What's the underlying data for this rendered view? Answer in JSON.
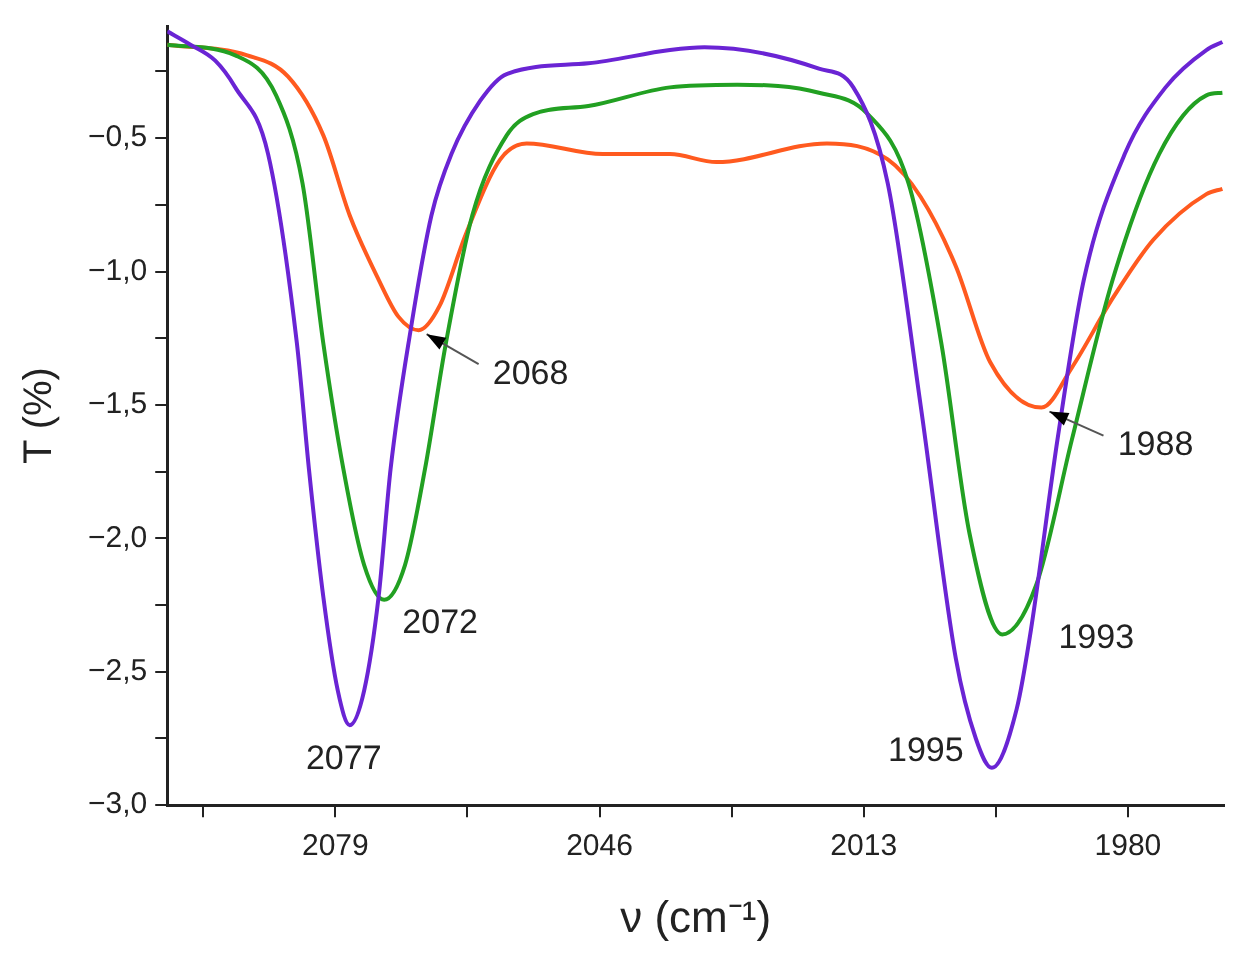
{
  "chart_data": {
    "type": "line",
    "xlabel": "ν (cm⁻¹)",
    "ylabel": "T (%)",
    "xlim": [
      2100,
      1968
    ],
    "ylim": [
      -3.0,
      -0.08
    ],
    "xticks": [
      {
        "value": 2095.5,
        "label": null
      },
      2079,
      {
        "value": 2062.5,
        "label": null
      },
      2046,
      {
        "value": 2029.5,
        "label": null
      },
      2013,
      {
        "value": 1996.5,
        "label": null
      },
      1980
    ],
    "yticks": [
      {
        "value": -3.0,
        "label": "−3,0"
      },
      {
        "value": -2.75,
        "label": null
      },
      {
        "value": -2.5,
        "label": "−2,5"
      },
      {
        "value": -2.25,
        "label": null
      },
      {
        "value": -2.0,
        "label": "−2,0"
      },
      {
        "value": -1.75,
        "label": null
      },
      {
        "value": -1.5,
        "label": "−1,5"
      },
      {
        "value": -1.25,
        "label": null
      },
      {
        "value": -1.0,
        "label": "−1,0"
      },
      {
        "value": -0.75,
        "label": null
      },
      {
        "value": -0.5,
        "label": "−0,5"
      },
      {
        "value": -0.25,
        "label": null
      }
    ],
    "marker": "none",
    "line_style": "solid",
    "legend": false,
    "series": [
      {
        "color": "#6a24d4",
        "x": [
          2100,
          2097.1,
          2094.0,
          2091.5,
          2087.4,
          2083.8,
          2082.3,
          2080.5,
          2078.7,
          2077.2,
          2075.4,
          2073.6,
          2072.1,
          2069.6,
          2067.0,
          2064.5,
          2060.9,
          2057.6,
          2047.4,
          2037.2,
          2032.9,
          2018.6,
          2014.3,
          2010.0,
          2005.9,
          2001.5,
          1999.0,
          1997.0,
          1993.9,
          1992.1,
          1988.8,
          1985.5,
          1980.4,
          1975.3,
          1970.2,
          1968.2
        ],
        "values": [
          -0.1,
          -0.15,
          -0.21,
          -0.31,
          -0.56,
          -1.27,
          -1.74,
          -2.22,
          -2.57,
          -2.7,
          -2.57,
          -2.22,
          -1.74,
          -1.22,
          -0.79,
          -0.56,
          -0.36,
          -0.26,
          -0.22,
          -0.17,
          -0.16,
          -0.24,
          -0.31,
          -0.67,
          -1.5,
          -2.45,
          -2.75,
          -2.86,
          -2.64,
          -2.34,
          -1.63,
          -1.03,
          -0.56,
          -0.31,
          -0.17,
          -0.14
        ]
      },
      {
        "color": "#22a022",
        "x": [
          2100,
          2091.5,
          2086.4,
          2083.1,
          2080.5,
          2078.0,
          2075.4,
          2072.9,
          2070.3,
          2067.8,
          2065.2,
          2061.9,
          2057.6,
          2054.3,
          2047.4,
          2037.2,
          2028.8,
          2018.6,
          2012.5,
          2007.4,
          2003.3,
          1999.8,
          1995.7,
          1991.4,
          1987.0,
          1981.9,
          1976.1,
          1970.2,
          1968.2
        ],
        "values": [
          -0.15,
          -0.19,
          -0.34,
          -0.67,
          -1.27,
          -1.74,
          -2.1,
          -2.23,
          -2.1,
          -1.74,
          -1.27,
          -0.79,
          -0.49,
          -0.41,
          -0.38,
          -0.31,
          -0.3,
          -0.33,
          -0.41,
          -0.67,
          -1.27,
          -1.98,
          -2.36,
          -2.17,
          -1.63,
          -1.03,
          -0.56,
          -0.34,
          -0.33
        ]
      },
      {
        "color": "#ff5a1f",
        "x": [
          2100,
          2090.0,
          2084.9,
          2080.5,
          2077.2,
          2073.6,
          2071.1,
          2068.6,
          2066.0,
          2062.7,
          2058.4,
          2055.1,
          2045.6,
          2037.2,
          2031.4,
          2017.6,
          2010.0,
          2005.9,
          2001.5,
          1997.2,
          1990.8,
          1987.0,
          1981.9,
          1976.8,
          1970.2,
          1968.2
        ],
        "values": [
          -0.15,
          -0.19,
          -0.27,
          -0.49,
          -0.79,
          -1.03,
          -1.17,
          -1.22,
          -1.13,
          -0.86,
          -0.58,
          -0.52,
          -0.56,
          -0.56,
          -0.59,
          -0.52,
          -0.58,
          -0.72,
          -0.98,
          -1.34,
          -1.51,
          -1.36,
          -1.1,
          -0.88,
          -0.71,
          -0.69
        ]
      }
    ],
    "annotations": [
      {
        "text": "2068",
        "x": 2068.6,
        "y": -1.22
      },
      {
        "text": "2072",
        "x": 2072.9,
        "y": -2.23
      },
      {
        "text": "2077",
        "x": 2077.2,
        "y": -2.7
      },
      {
        "text": "1988",
        "x": 1990.8,
        "y": -1.51
      },
      {
        "text": "1993",
        "x": 1995.7,
        "y": -2.36
      },
      {
        "text": "1995",
        "x": 1997.0,
        "y": -2.86
      }
    ]
  }
}
